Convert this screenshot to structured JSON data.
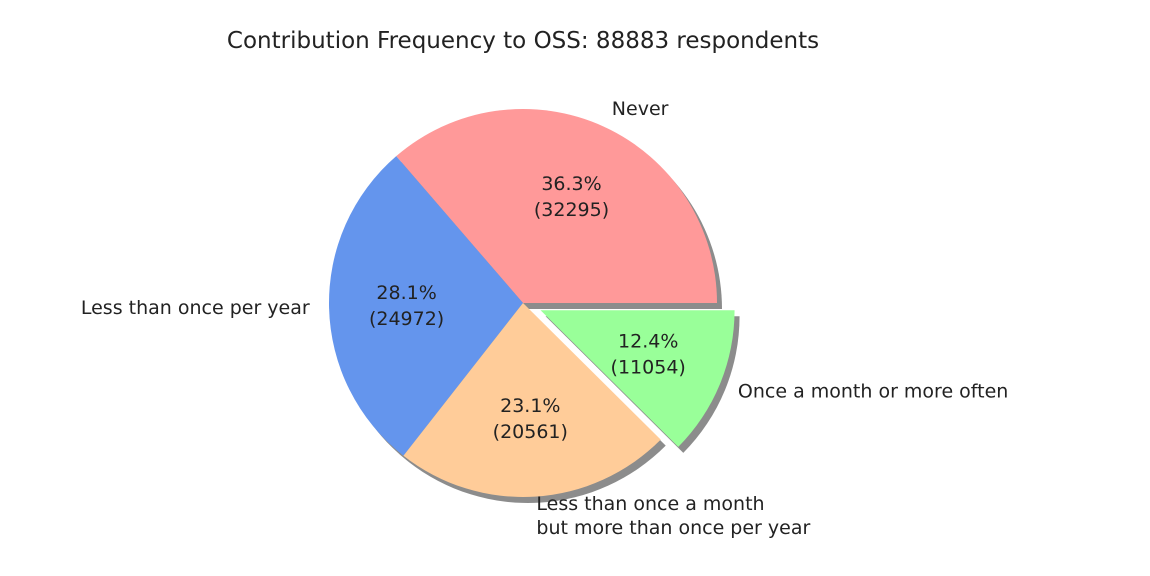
{
  "chart_data": {
    "type": "pie",
    "title": "Contribution Frequency to OSS: 88883 respondents",
    "total": 88883,
    "slices": [
      {
        "label": "Never",
        "label_lines": [
          "Never"
        ],
        "value": 32295,
        "pct_label": "36.3%",
        "count_label": "(32295)",
        "color": "#ff9999",
        "exploded": false
      },
      {
        "label": "Less than once per year",
        "label_lines": [
          "Less than once per year"
        ],
        "value": 24972,
        "pct_label": "28.1%",
        "count_label": "(24972)",
        "color": "#6495ed",
        "exploded": false
      },
      {
        "label": "Less than once a month but more than once per year",
        "label_lines": [
          "Less than once a month",
          "but more than once per year"
        ],
        "value": 20561,
        "pct_label": "23.1%",
        "count_label": "(20561)",
        "color": "#ffcc99",
        "exploded": false
      },
      {
        "label": "Once a month or more often",
        "label_lines": [
          "Once a month or more often"
        ],
        "value": 11054,
        "pct_label": "12.4%",
        "count_label": "(11054)",
        "color": "#99ff99",
        "exploded": true
      }
    ],
    "start_angle": "0° (3 o'clock), counter-clockwise",
    "shadow": true
  }
}
